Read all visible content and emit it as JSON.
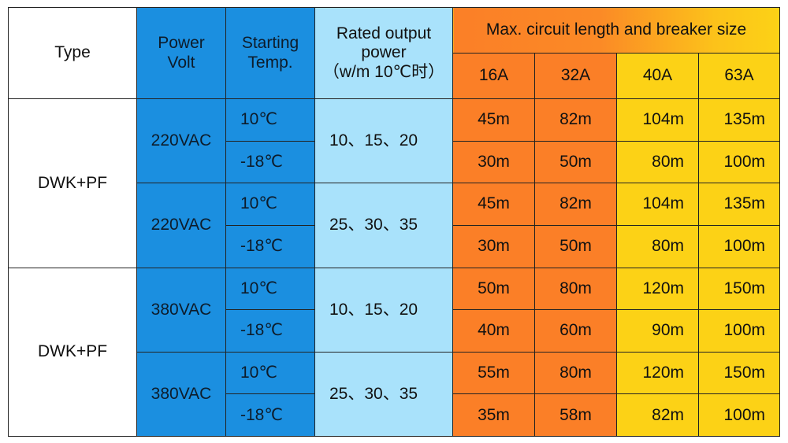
{
  "header": {
    "type": "Type",
    "power_volt": [
      "Power",
      "Volt"
    ],
    "starting_temp": [
      "Starting",
      "Temp."
    ],
    "rated_output": [
      "Rated output",
      "power",
      "（w/m 10℃时）"
    ],
    "max_circuit": "Max. circuit length and breaker size",
    "breakers": [
      "16A",
      "32A",
      "40A",
      "63A"
    ]
  },
  "groups": [
    {
      "type": "DWK+PF",
      "blocks": [
        {
          "volt": "220VAC",
          "power": "10、15、20",
          "rows": [
            {
              "temp": "10℃",
              "lengths": [
                "45m",
                "82m",
                "104m",
                "135m"
              ]
            },
            {
              "temp": "-18℃",
              "lengths": [
                "30m",
                "50m",
                "80m",
                "100m"
              ]
            }
          ]
        },
        {
          "volt": "220VAC",
          "power": "25、30、35",
          "rows": [
            {
              "temp": "10℃",
              "lengths": [
                "45m",
                "82m",
                "104m",
                "135m"
              ]
            },
            {
              "temp": "-18℃",
              "lengths": [
                "30m",
                "50m",
                "80m",
                "100m"
              ]
            }
          ]
        }
      ]
    },
    {
      "type": "DWK+PF",
      "blocks": [
        {
          "volt": "380VAC",
          "power": "10、15、20",
          "rows": [
            {
              "temp": "10℃",
              "lengths": [
                "50m",
                "80m",
                "120m",
                "150m"
              ]
            },
            {
              "temp": "-18℃",
              "lengths": [
                "40m",
                "60m",
                "90m",
                "100m"
              ]
            }
          ]
        },
        {
          "volt": "380VAC",
          "power": "25、30、35",
          "rows": [
            {
              "temp": "10℃",
              "lengths": [
                "55m",
                "80m",
                "120m",
                "150m"
              ]
            },
            {
              "temp": "-18℃",
              "lengths": [
                "35m",
                "58m",
                "82m",
                "100m"
              ]
            }
          ]
        }
      ]
    }
  ],
  "colors": {
    "blue": "#1b8fe0",
    "light_blue": "#a9e2fb",
    "orange": "#fb7f27",
    "yellow": "#fcd216"
  }
}
